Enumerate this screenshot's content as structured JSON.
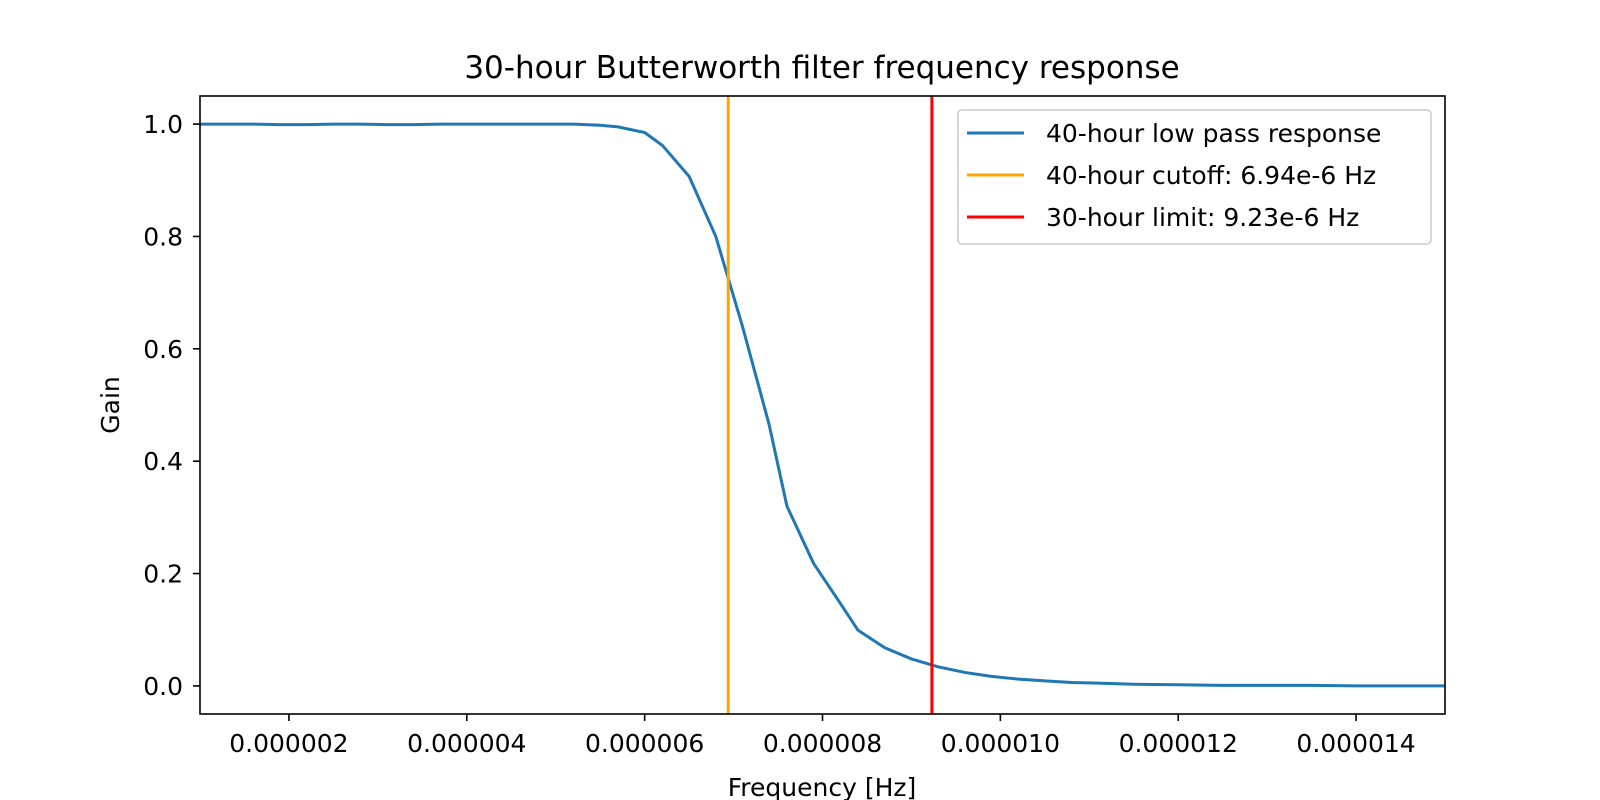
{
  "chart_data": {
    "type": "line",
    "title": "30-hour Butterworth filter frequency response",
    "xlabel": "Frequency [Hz]",
    "ylabel": "Gain",
    "xlim": [
      1e-06,
      1.5e-05
    ],
    "ylim": [
      -0.05,
      1.05
    ],
    "xticks": [
      2e-06,
      4e-06,
      6e-06,
      8e-06,
      1e-05,
      1.2e-05,
      1.4e-05
    ],
    "xtick_labels": [
      "0.000002",
      "0.000004",
      "0.000006",
      "0.000008",
      "0.000010",
      "0.000012",
      "0.000014"
    ],
    "yticks": [
      0.0,
      0.2,
      0.4,
      0.6,
      0.8,
      1.0
    ],
    "ytick_labels": [
      "0.0",
      "0.2",
      "0.4",
      "0.6",
      "0.8",
      "1.0"
    ],
    "grid": false,
    "legend_position": "top-right",
    "series": [
      {
        "name": "40-hour low pass response",
        "color": "#1f77b4",
        "x": [
          1e-06,
          1.3e-06,
          1.6e-06,
          1.9e-06,
          2.2e-06,
          2.5e-06,
          2.8e-06,
          3.1e-06,
          3.4e-06,
          3.7e-06,
          4e-06,
          4.3e-06,
          4.6e-06,
          4.9e-06,
          5.2e-06,
          5.5e-06,
          5.7e-06,
          6e-06,
          6.2e-06,
          6.5e-06,
          6.8e-06,
          7.1e-06,
          7.4e-06,
          7.6e-06,
          7.9e-06,
          8.2e-06,
          8.4e-06,
          8.7e-06,
          9e-06,
          9.3e-06,
          9.6e-06,
          9.9e-06,
          1.02e-05,
          1.05e-05,
          1.08e-05,
          1.11e-05,
          1.15e-05,
          1.2e-05,
          1.25e-05,
          1.3e-05,
          1.35e-05,
          1.4e-05,
          1.5e-05
        ],
        "y": [
          1.0,
          1.0,
          1.0,
          0.999,
          0.999,
          1.0,
          1.0,
          0.999,
          0.999,
          1.0,
          1.0,
          1.0,
          1.0,
          1.0,
          1.0,
          0.998,
          0.995,
          0.985,
          0.962,
          0.907,
          0.8,
          0.64,
          0.465,
          0.32,
          0.218,
          0.147,
          0.099,
          0.068,
          0.048,
          0.034,
          0.024,
          0.017,
          0.012,
          0.009,
          0.006,
          0.005,
          0.003,
          0.002,
          0.001,
          0.001,
          0.001,
          0.0,
          0.0
        ]
      },
      {
        "name": "40-hour cutoff: 6.94e-6 Hz",
        "color": "#ffa500",
        "vline": 6.94e-06
      },
      {
        "name": "30-hour limit: 9.23e-6 Hz",
        "color": "#ff0000",
        "vline": 9.23e-06
      }
    ]
  }
}
